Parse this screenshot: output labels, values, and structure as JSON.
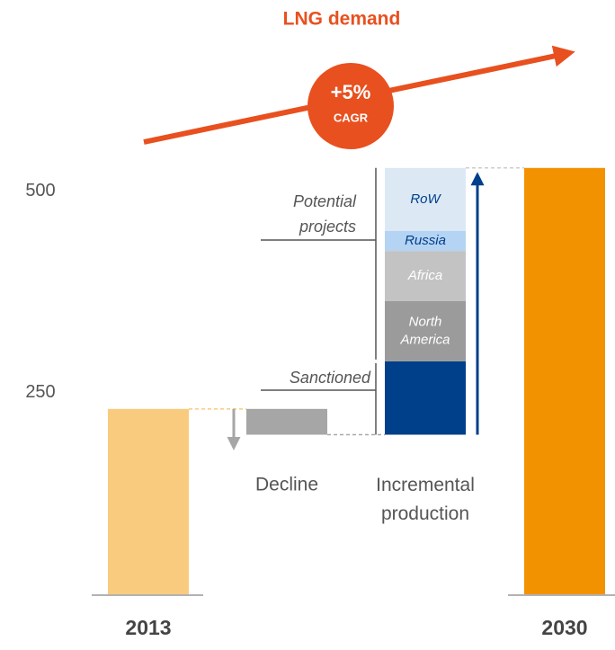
{
  "chart_data": {
    "type": "waterfall",
    "title": "LNG demand",
    "growth": {
      "value": 5,
      "label": "+5%",
      "unit": "CAGR"
    },
    "ylim": [
      0,
      560
    ],
    "yticks": [
      250,
      500
    ],
    "start": {
      "category": "2013",
      "value": 230,
      "color": "#f9cb7f"
    },
    "decline": {
      "category": "Decline",
      "value": -32,
      "color": "#a6a6a6"
    },
    "incremental": {
      "category": "Incremental production",
      "segments": [
        {
          "name": "Sanctioned",
          "value": 91,
          "color": "#003f8a"
        },
        {
          "name": "North America",
          "value": 75,
          "color": "#9b9b9b",
          "text_color": "#ffffff"
        },
        {
          "name": "Africa",
          "value": 62,
          "color": "#c3c3c3",
          "text_color": "#ffffff"
        },
        {
          "name": "Russia",
          "value": 25,
          "color": "#b5d3f3",
          "text_color": "#003f8a"
        },
        {
          "name": "RoW",
          "value": 78,
          "color": "#dce9f5",
          "text_color": "#003f8a"
        }
      ]
    },
    "annotations": [
      "Potential projects"
    ],
    "end": {
      "category": "2030",
      "value": 529,
      "color": "#f39200"
    }
  }
}
